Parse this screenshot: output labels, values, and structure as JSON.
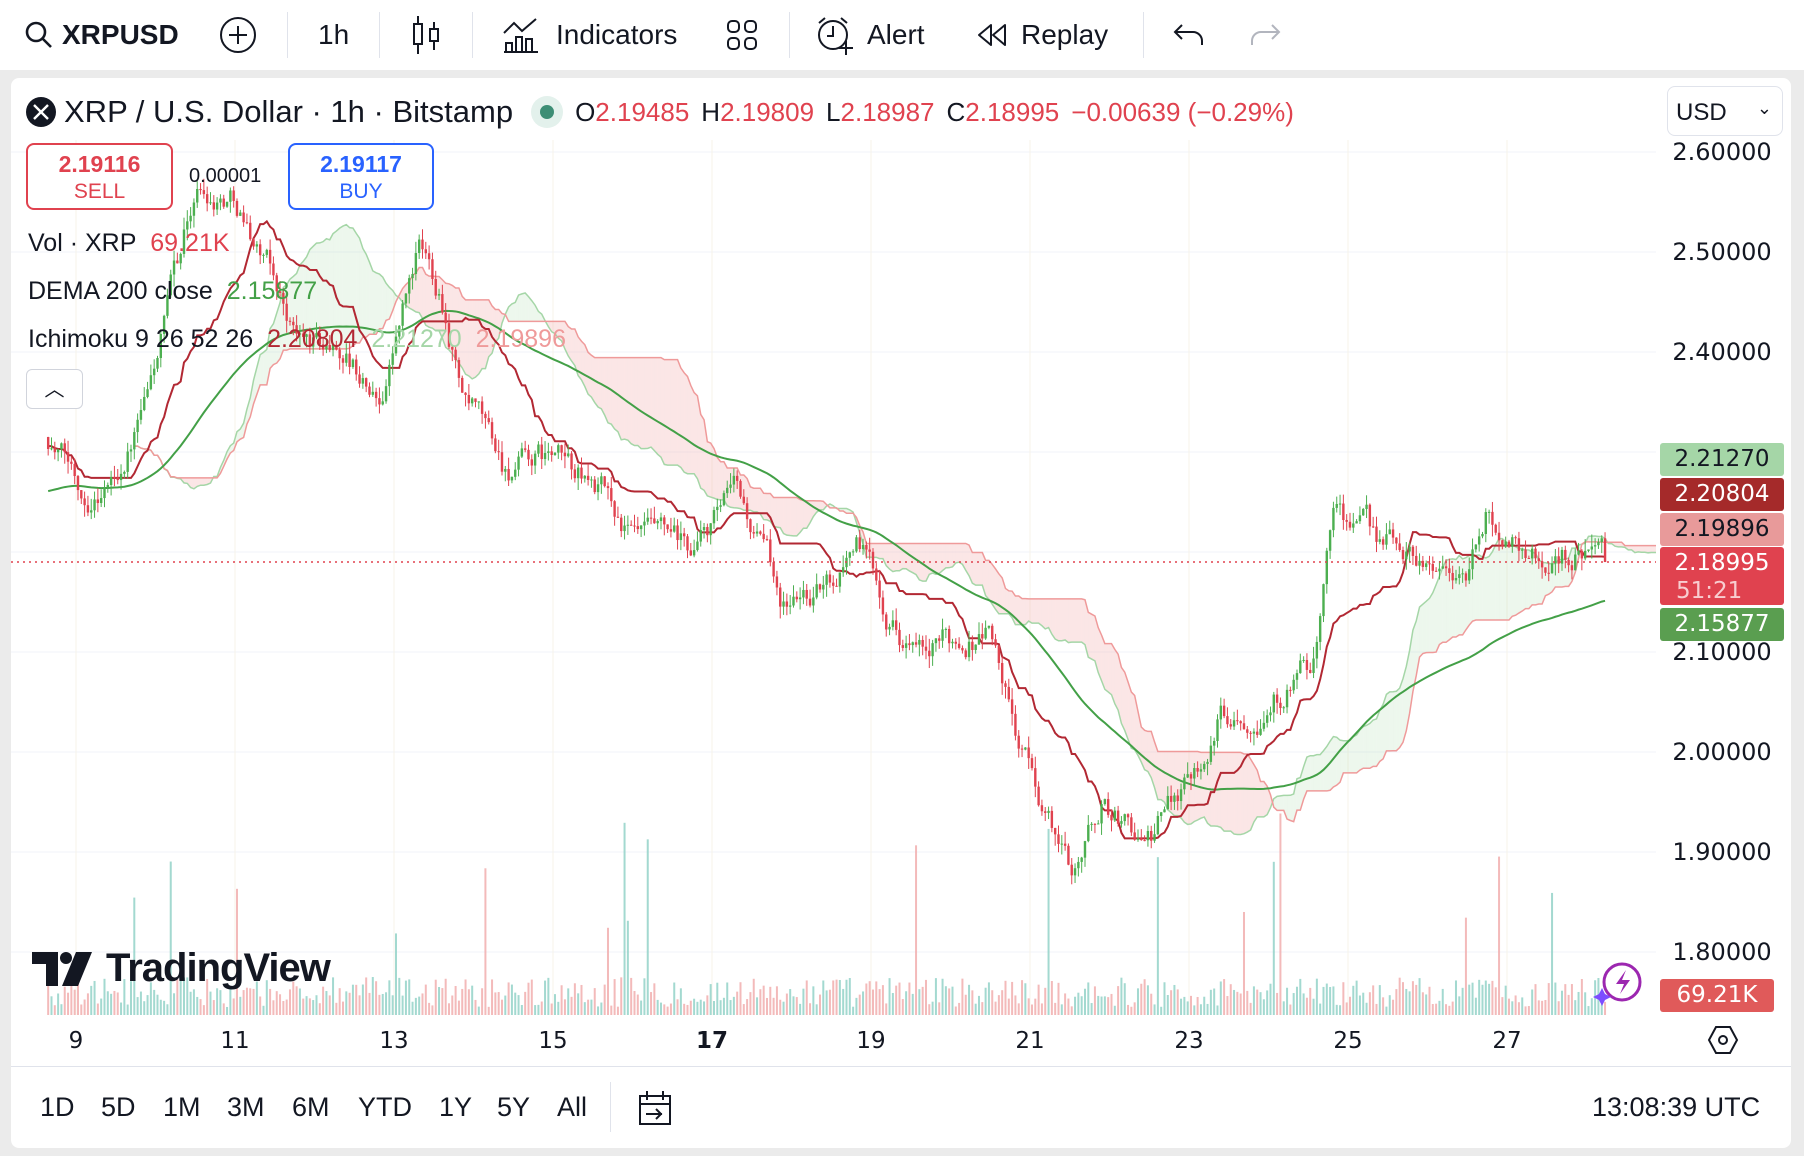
{
  "toolbar": {
    "symbol": "XRPUSD",
    "interval": "1h",
    "indicators": "Indicators",
    "alert": "Alert",
    "replay": "Replay"
  },
  "header": {
    "title": "XRP / U.S. Dollar · 1h · Bitstamp",
    "o_label": "O",
    "o": "2.19485",
    "h_label": "H",
    "h": "2.19809",
    "l_label": "L",
    "l": "2.18987",
    "c_label": "C",
    "c": "2.18995",
    "change": "−0.00639 (−0.29%)"
  },
  "trade": {
    "sell_price": "2.19116",
    "sell_label": "SELL",
    "buy_price": "2.19117",
    "buy_label": "BUY",
    "spread": "0.00001"
  },
  "legend": {
    "vol_label": "Vol · XRP",
    "vol_value": "69.21K",
    "dema_label": "DEMA 200 close",
    "dema_value": "2.15877",
    "ichi_label": "Ichimoku 9 26 52 26",
    "ichi_v1": "2.20804",
    "ichi_v2": "2.21270",
    "ichi_v3": "2.19896"
  },
  "currency": "USD",
  "price_axis": [
    "2.60000",
    "2.50000",
    "2.40000",
    "2.10000",
    "2.00000",
    "1.90000",
    "1.80000"
  ],
  "price_tags": {
    "lead_a": "2.21270",
    "base": "2.20804",
    "lead_b": "2.19896",
    "last": "2.18995",
    "countdown": "51:21",
    "dema": "2.15877",
    "volume": "69.21K"
  },
  "date_axis": [
    "9",
    "11",
    "13",
    "15",
    "17",
    "19",
    "21",
    "23",
    "25",
    "27"
  ],
  "ranges": [
    "1D",
    "5D",
    "1M",
    "3M",
    "6M",
    "YTD",
    "1Y",
    "5Y",
    "All"
  ],
  "clock": "13:08:39 UTC",
  "logo": "TradingView",
  "colors": {
    "up": "#4caf50",
    "down": "#e0424f",
    "kijun": "#b22833",
    "spanA": "#a5d6a7",
    "spanB": "#ef9a9a",
    "dema": "#43a047"
  },
  "chart_data": {
    "type": "candlestick",
    "interval": "1h",
    "ylim": [
      1.75,
      2.62
    ],
    "x_unit": "day of month",
    "last_price": 2.18995,
    "anchors": [
      [
        8.65,
        2.315
      ],
      [
        9.1,
        2.26
      ],
      [
        9.5,
        2.28
      ],
      [
        9.9,
        2.35
      ],
      [
        10.5,
        2.56
      ],
      [
        11,
        2.56
      ],
      [
        11.4,
        2.49
      ],
      [
        11.8,
        2.41
      ],
      [
        12.4,
        2.4
      ],
      [
        12.8,
        2.35
      ],
      [
        13.3,
        2.5
      ],
      [
        13.6,
        2.46
      ],
      [
        13.9,
        2.35
      ],
      [
        14.4,
        2.28
      ],
      [
        15,
        2.29
      ],
      [
        15.6,
        2.26
      ],
      [
        16,
        2.21
      ],
      [
        16.7,
        2.19
      ],
      [
        17.3,
        2.25
      ],
      [
        17.9,
        2.15
      ],
      [
        18.5,
        2.17
      ],
      [
        18.8,
        2.22
      ],
      [
        19.2,
        2.15
      ],
      [
        19.7,
        2.085
      ],
      [
        20.1,
        2.11
      ],
      [
        20.5,
        2.13
      ],
      [
        20.8,
        2.02
      ],
      [
        21.3,
        1.92
      ],
      [
        21.5,
        1.88
      ],
      [
        21.9,
        1.95
      ],
      [
        22.5,
        1.91
      ],
      [
        22.9,
        1.97
      ],
      [
        23.4,
        2.04
      ],
      [
        23.9,
        2.06
      ],
      [
        24.6,
        2.085
      ],
      [
        24.8,
        2.245
      ],
      [
        25.3,
        2.21
      ],
      [
        25.9,
        2.2
      ],
      [
        26.5,
        2.177
      ],
      [
        26.75,
        2.235
      ],
      [
        27.5,
        2.19
      ],
      [
        28.0,
        2.21
      ],
      [
        28.25,
        2.19
      ]
    ]
  }
}
